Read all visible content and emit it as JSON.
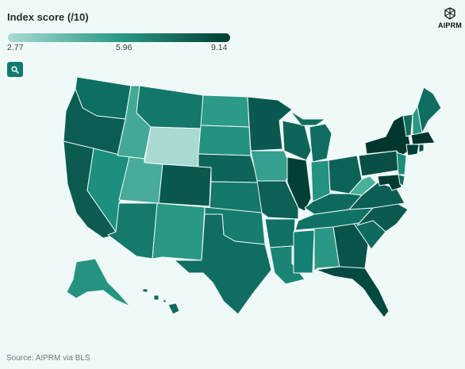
{
  "legend": {
    "title": "Index score (/10)",
    "min": "2.77",
    "mid": "5.96",
    "max": "9.14",
    "colors": {
      "low": "#a9dad2",
      "mid": "#2a9a87",
      "high": "#003d33"
    }
  },
  "search": {
    "icon": "search-icon"
  },
  "logo": {
    "text": "AIPRM",
    "icon": "aiprm-logo-icon"
  },
  "source": "Source: AIPRM via BLS",
  "colors": {
    "background": "#eff9f8",
    "button": "#137a6d"
  }
}
